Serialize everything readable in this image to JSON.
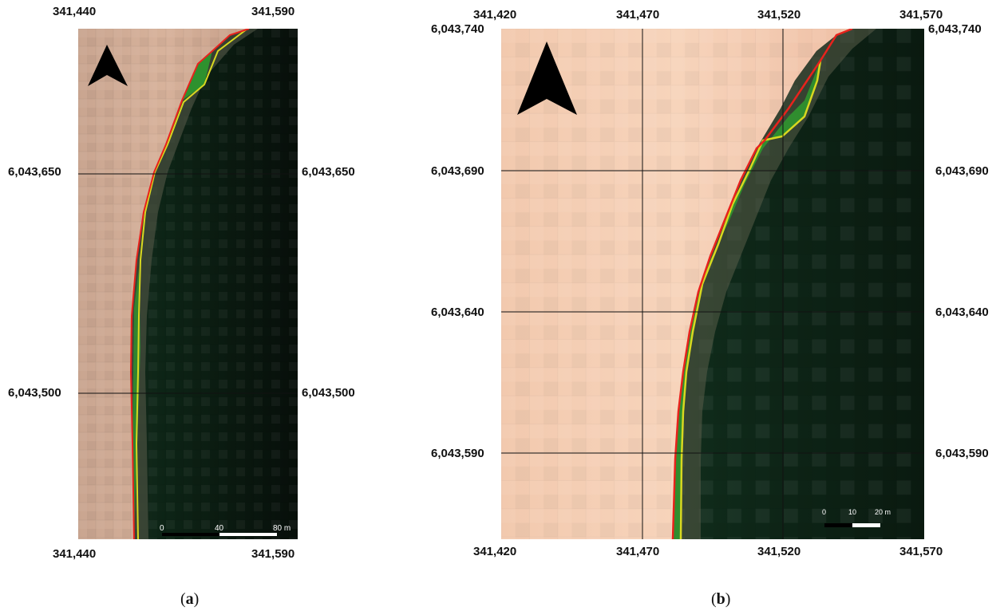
{
  "panel_a": {
    "caption_open": "(",
    "caption_letter": "a",
    "caption_close": ")",
    "x_labels_top": [
      "341,440",
      "341,590"
    ],
    "x_labels_bottom": [
      "341,440",
      "341,590"
    ],
    "y_labels_left": [
      "6,043,650",
      "6,043,500"
    ],
    "y_labels_right": [
      "6,043,650",
      "6,043,500"
    ],
    "scale_labels": [
      "0",
      "40",
      "80 m"
    ],
    "north_arrow_icon": "north-arrow-icon"
  },
  "panel_b": {
    "caption_open": "(",
    "caption_letter": "b",
    "caption_close": ")",
    "x_labels_top": [
      "341,420",
      "341,470",
      "341,520",
      "341,570"
    ],
    "x_labels_bottom": [
      "341,420",
      "341,470",
      "341,520",
      "341,570"
    ],
    "y_labels_left": [
      "6,043,740",
      "6,043,690",
      "6,043,640",
      "6,043,590"
    ],
    "y_labels_right": [
      "6,043,740",
      "6,043,690",
      "6,043,640",
      "6,043,590"
    ],
    "scale_labels": [
      "0",
      "10",
      "20 m"
    ],
    "north_arrow_icon": "north-arrow-icon"
  },
  "colors": {
    "land": "#e8c0a8",
    "water": "#0e2416",
    "line_red": "#e8221c",
    "line_yellow": "#d8d820",
    "fill_green": "#2e9a2e"
  }
}
